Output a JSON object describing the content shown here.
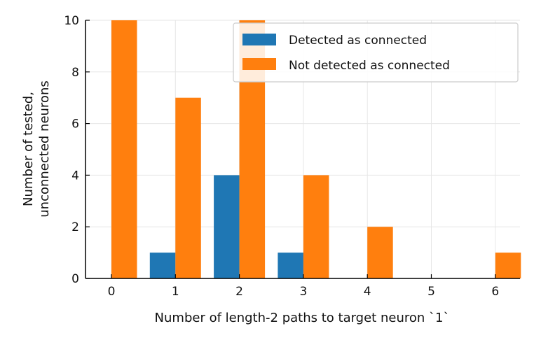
{
  "chart_data": {
    "type": "bar",
    "categories": [
      "0",
      "1",
      "2",
      "3",
      "4",
      "5",
      "6"
    ],
    "series": [
      {
        "name": "Detected as connected",
        "color": "#1f77b4",
        "values": [
          0,
          1,
          4,
          1,
          0,
          0,
          0
        ]
      },
      {
        "name": "Not detected as connected",
        "color": "#ff7f0e",
        "values": [
          10,
          7,
          10,
          4,
          2,
          0,
          1
        ]
      }
    ],
    "xlabel": "Number of length-2 paths to target neuron `1`",
    "ylabel_lines": [
      "Number of tested,",
      "unconnected neurons"
    ],
    "ylim": [
      0,
      10
    ],
    "yticks": [
      "0",
      "2",
      "4",
      "6",
      "8",
      "10"
    ],
    "grid": true,
    "legend_position": "top-right"
  }
}
